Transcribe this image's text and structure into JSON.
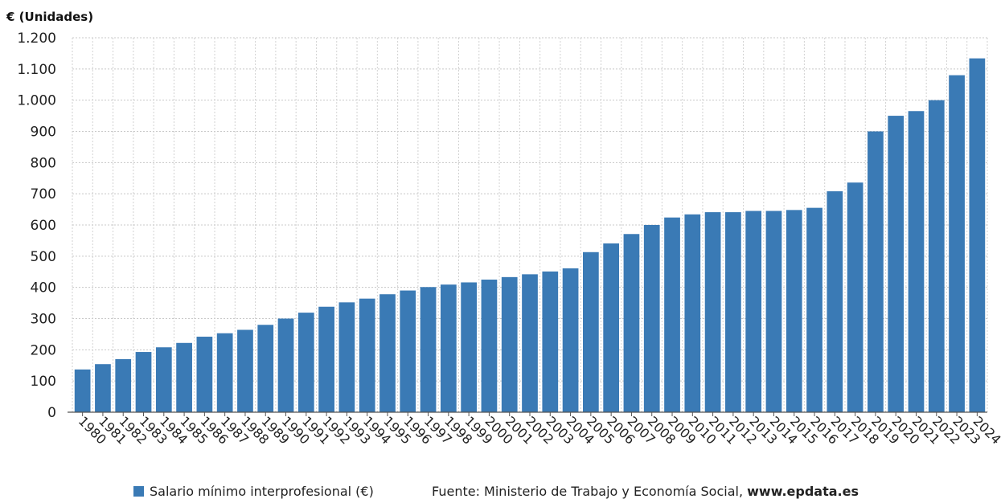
{
  "chart_data": {
    "type": "bar",
    "unit_label": "€ (Unidades)",
    "title": "",
    "xlabel": "",
    "ylabel": "€ (Unidades)",
    "ylim": [
      0,
      1200
    ],
    "yticks": [
      0,
      100,
      200,
      300,
      400,
      500,
      600,
      700,
      800,
      900,
      1000,
      1100,
      1200
    ],
    "ytick_labels": [
      "0",
      "100",
      "200",
      "300",
      "400",
      "500",
      "600",
      "700",
      "800",
      "900",
      "1.000",
      "1.100",
      "1.200"
    ],
    "grid": true,
    "categories": [
      "1980",
      "1981",
      "1982",
      "1983",
      "1984",
      "1985",
      "1986",
      "1987",
      "1988",
      "1989",
      "1990",
      "1991",
      "1992",
      "1993",
      "1994",
      "1995",
      "1996",
      "1997",
      "1998",
      "1999",
      "2000",
      "2001",
      "2002",
      "2003",
      "2004",
      "2005",
      "2006",
      "2007",
      "2008",
      "2009",
      "2010",
      "2011",
      "2012",
      "2013",
      "2014",
      "2015",
      "2016",
      "2017",
      "2018",
      "2019",
      "2020",
      "2021",
      "2022",
      "2023",
      "2024"
    ],
    "series": [
      {
        "name": "Salario mínimo interprofesional (€)",
        "color": "#3a7ab5",
        "values": [
          137,
          154,
          170,
          193,
          208,
          222,
          242,
          253,
          264,
          280,
          300,
          319,
          338,
          352,
          364,
          378,
          390,
          401,
          409,
          416,
          425,
          433,
          442,
          451,
          461,
          513,
          541,
          571,
          600,
          624,
          634,
          641,
          641,
          645,
          645,
          648,
          655,
          708,
          736,
          900,
          950,
          965,
          1000,
          1080,
          1134
        ]
      }
    ],
    "legend": {
      "placement": "bottom",
      "label": "Salario mínimo interprofesional (€)"
    },
    "source": {
      "prefix": "Fuente: Ministerio de Trabajo y Economía Social, ",
      "site": "www.epdata.es"
    }
  }
}
